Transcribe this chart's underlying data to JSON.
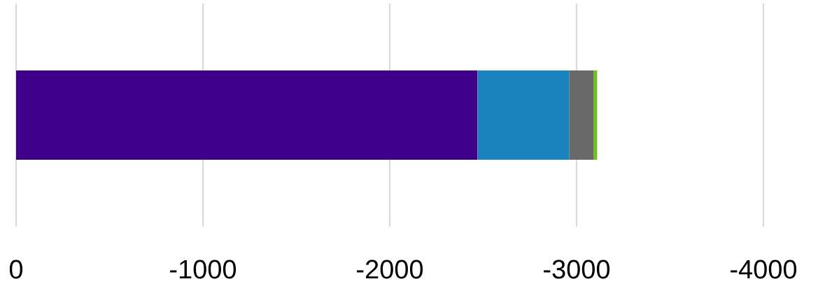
{
  "chart_data": {
    "type": "bar",
    "orientation": "horizontal",
    "stacked": true,
    "categories": [
      null
    ],
    "series": [
      {
        "color": "#3f008a",
        "values": [
          -2470
        ]
      },
      {
        "color": "#1a82bc",
        "values": [
          -490
        ]
      },
      {
        "color": "#696969",
        "values": [
          -130
        ]
      },
      {
        "color": "#72bf22",
        "values": [
          -20
        ]
      }
    ],
    "xlim": [
      0,
      -4000
    ],
    "xticks": [
      0,
      -1000,
      -2000,
      -3000,
      -4000
    ],
    "grid": "x",
    "tick_labels": "x"
  }
}
